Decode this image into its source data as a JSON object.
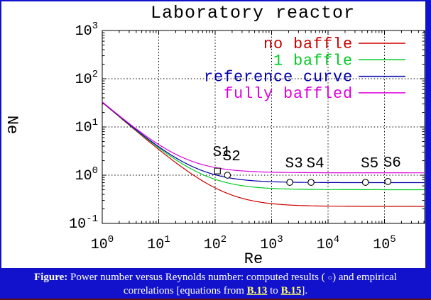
{
  "frame": {
    "border_color": "#1212cc",
    "bottom_edge_color": "#5c1212",
    "plot_background": "#ffffff"
  },
  "chart_data": {
    "type": "line",
    "title": "Laboratory reactor",
    "xlabel": "Re",
    "ylabel": "Ne",
    "x_scale": "log",
    "y_scale": "log",
    "xlim": [
      1,
      510000
    ],
    "ylim": [
      0.1,
      1000
    ],
    "grid": "dotted",
    "legend_position": "top-right",
    "tick_base": "10",
    "x_tick_exponents": [
      0,
      1,
      2,
      3,
      4,
      5
    ],
    "y_tick_exponents": [
      3,
      2,
      1,
      0,
      -1
    ],
    "series_model_note": "Ne = laminar_constant / Re + turbulent_plateau",
    "sample_Re": [
      1,
      2,
      5,
      10,
      20,
      50,
      100,
      200,
      500,
      1000,
      2000,
      5000,
      10000,
      100000,
      500000
    ],
    "series": [
      {
        "name": "no baffle",
        "color": "#cc0000",
        "laminar_constant": 32,
        "turbulent_plateau": 0.225,
        "sample_Ne": [
          32.2,
          16.2,
          6.63,
          3.43,
          1.83,
          0.865,
          0.545,
          0.385,
          0.289,
          0.257,
          0.241,
          0.231,
          0.228,
          0.225,
          0.225
        ]
      },
      {
        "name": "1 baffle",
        "color": "#00cc22",
        "laminar_constant": 32,
        "turbulent_plateau": 0.5,
        "sample_Ne": [
          32.5,
          16.5,
          6.9,
          3.7,
          2.1,
          1.14,
          0.82,
          0.66,
          0.564,
          0.532,
          0.516,
          0.506,
          0.503,
          0.5,
          0.5
        ]
      },
      {
        "name": "reference curve",
        "color": "#0000aa",
        "laminar_constant": 32,
        "turbulent_plateau": 0.7,
        "sample_Ne": [
          32.7,
          16.7,
          7.1,
          3.9,
          2.3,
          1.34,
          1.02,
          0.86,
          0.764,
          0.732,
          0.716,
          0.706,
          0.703,
          0.7,
          0.7
        ]
      },
      {
        "name": "fully baffled",
        "color": "#dd00dd",
        "laminar_constant": 32,
        "turbulent_plateau": 1.12,
        "sample_Ne": [
          33.1,
          17.1,
          7.52,
          4.32,
          2.72,
          1.76,
          1.44,
          1.28,
          1.18,
          1.15,
          1.14,
          1.13,
          1.12,
          1.12,
          1.12
        ]
      }
    ],
    "computed_results": {
      "name": "computed results",
      "marker": "open-circle",
      "points": [
        {
          "label": "S1",
          "Re": 110,
          "Ne": 1.22,
          "marker": "square"
        },
        {
          "label": "S2",
          "Re": 165,
          "Ne": 1.0,
          "marker": "circle"
        },
        {
          "label": "S3",
          "Re": 2100,
          "Ne": 0.71,
          "marker": "circle"
        },
        {
          "label": "S4",
          "Re": 5000,
          "Ne": 0.71,
          "marker": "circle"
        },
        {
          "label": "S5",
          "Re": 46000,
          "Ne": 0.71,
          "marker": "circle"
        },
        {
          "label": "S6",
          "Re": 115000,
          "Ne": 0.74,
          "marker": "circle"
        }
      ]
    }
  },
  "caption": {
    "label": "Figure:",
    "line1_before_symbol": "Power number versus Reynolds number: computed results ( ",
    "symbol": "○",
    "line1_after_symbol": ") and empirical",
    "line2_prefix": "correlations [equations from ",
    "link1": "B.13",
    "line2_middle": " to ",
    "link2": "B.15",
    "line2_suffix": "]."
  }
}
